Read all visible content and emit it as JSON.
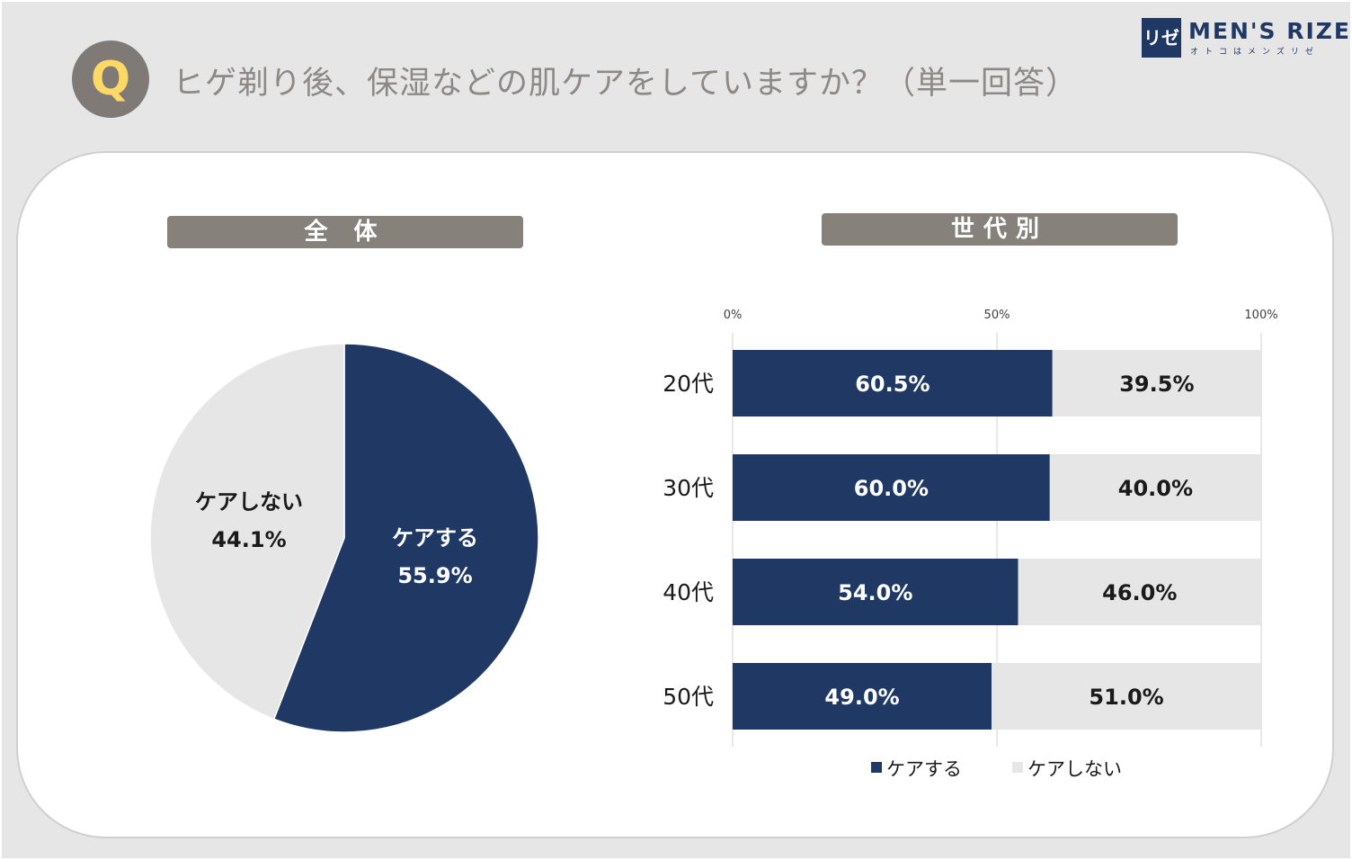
{
  "header": {
    "q_label": "Q",
    "question": "ヒゲ剃り後、保湿などの肌ケアをしていますか？（単一回答）"
  },
  "logo": {
    "mark": "リゼ",
    "text": "MEN'S RIZE",
    "subtitle": "オトコはメンズリゼ"
  },
  "sections": {
    "total_title": "全 体",
    "age_title": "世代別"
  },
  "colors": {
    "care": "#1f3864",
    "no_care": "#e7e6e6"
  },
  "chart_data": [
    {
      "type": "pie",
      "title": "全 体",
      "categories": [
        "ケアする",
        "ケアしない"
      ],
      "values": [
        55.9,
        44.1
      ],
      "labels": [
        "55.9%",
        "44.1%"
      ]
    },
    {
      "type": "bar",
      "orientation": "horizontal",
      "stacked": true,
      "title": "世代別",
      "categories": [
        "20代",
        "30代",
        "40代",
        "50代"
      ],
      "xlim": [
        0,
        100
      ],
      "xticks": [
        "0%",
        "50%",
        "100%"
      ],
      "series": [
        {
          "name": "ケアする",
          "values": [
            60.5,
            60.0,
            54.0,
            49.0
          ],
          "labels": [
            "60.5%",
            "60.0%",
            "54.0%",
            "49.0%"
          ]
        },
        {
          "name": "ケアしない",
          "values": [
            39.5,
            40.0,
            46.0,
            51.0
          ],
          "labels": [
            "39.5%",
            "40.0%",
            "46.0%",
            "51.0%"
          ]
        }
      ],
      "legend": "bottom"
    }
  ]
}
